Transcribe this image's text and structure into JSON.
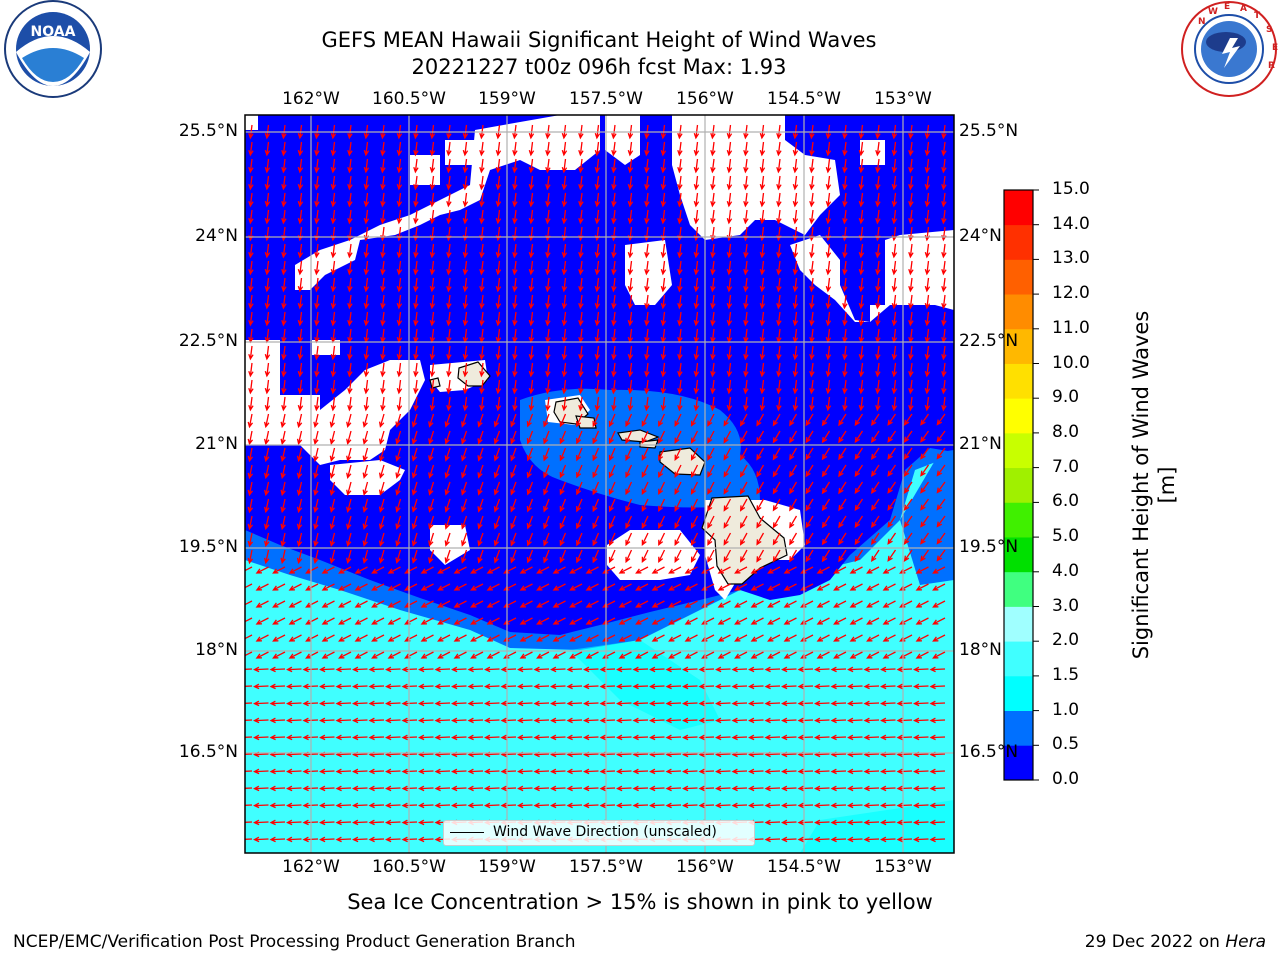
{
  "header": {
    "title_line1": "GEFS MEAN Hawaii Significant Height of Wind Waves",
    "title_line2": "20221227 t00z 096h fcst   Max: 1.93"
  },
  "logos": {
    "left": {
      "icon": "noaa-logo-icon",
      "text": "NOAA",
      "ring_text": "NATIONAL OCEANIC AND ATMOSPHERIC ADMINISTRATION U.S. DEPARTMENT OF COMMERCE"
    },
    "right": {
      "icon": "nws-logo-icon",
      "ring_text": "NATIONAL WEATHER SERVICE"
    }
  },
  "map": {
    "lon_labels": [
      "162°W",
      "160.5°W",
      "159°W",
      "157.5°W",
      "156°W",
      "154.5°W",
      "153°W"
    ],
    "lat_labels": [
      "25.5°N",
      "24°N",
      "22.5°N",
      "21°N",
      "19.5°N",
      "18°N",
      "16.5°N"
    ],
    "legend_label": "Wind Wave Direction (unscaled)",
    "colors": {
      "blue_0": "#0000ff",
      "blue_05": "#0070ff",
      "cyan_1": "#00ffff",
      "cyan_15": "#40ffff",
      "land": "#efebdc",
      "arrow": "#ff0000",
      "grid": "#b0b0b0"
    }
  },
  "colorbar": {
    "label": "Significant Height of Wind Waves [m]",
    "ticks": [
      "0.0",
      "0.5",
      "1.0",
      "1.5",
      "2.0",
      "3.0",
      "4.0",
      "5.0",
      "6.0",
      "7.0",
      "8.0",
      "9.0",
      "10.0",
      "11.0",
      "12.0",
      "13.0",
      "14.0",
      "15.0"
    ],
    "colors": [
      "#0000ff",
      "#0070ff",
      "#00ffff",
      "#40ffff",
      "#a0ffff",
      "#40ff80",
      "#00e000",
      "#40f000",
      "#a0f000",
      "#c8ff00",
      "#ffff00",
      "#ffe000",
      "#ffb800",
      "#ff8c00",
      "#ff6000",
      "#ff3000",
      "#ff0000"
    ]
  },
  "footer": {
    "note": "Sea Ice Concentration > 15% is shown in pink to yellow",
    "left": "NCEP/EMC/Verification Post Processing Product Generation Branch",
    "right_prefix": "29 Dec 2022 on ",
    "right_host": "Hera"
  }
}
